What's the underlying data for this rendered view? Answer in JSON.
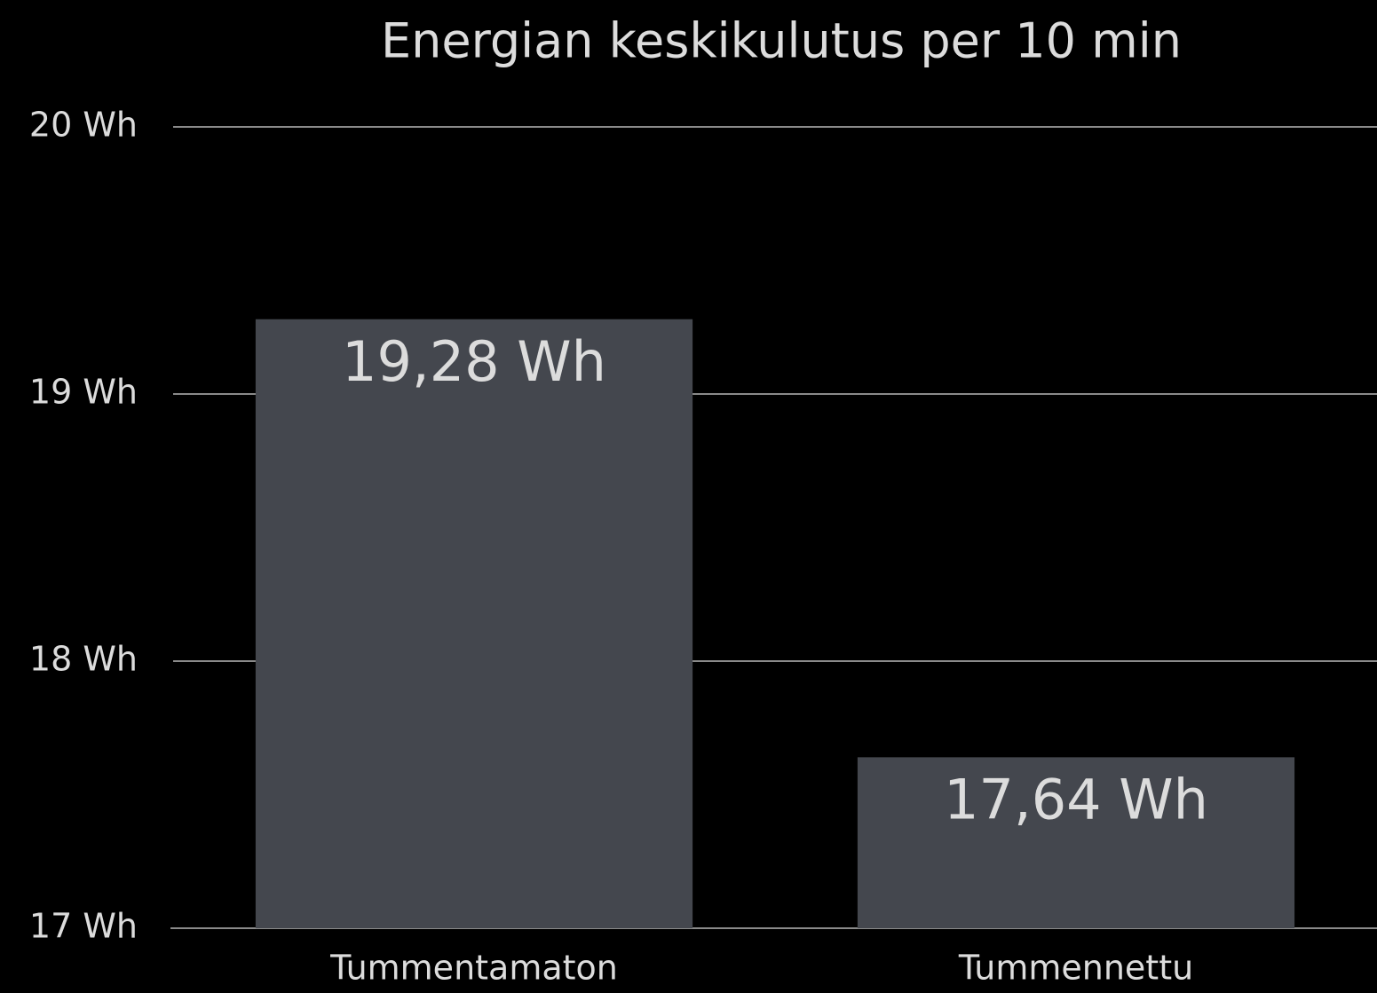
{
  "chart_data": {
    "type": "bar",
    "title": "Energian keskikulutus per 10 min",
    "categories": [
      "Tummentamaton",
      "Tummennettu"
    ],
    "values": [
      19.28,
      17.64
    ],
    "value_labels": [
      "19,28 Wh",
      "17,64 Wh"
    ],
    "color": "#44474e",
    "ylim": [
      17,
      20
    ],
    "yticks": [
      {
        "value": 17,
        "label": "17 Wh"
      },
      {
        "value": 18,
        "label": "18 Wh"
      },
      {
        "value": 19,
        "label": "19 Wh"
      },
      {
        "value": 20,
        "label": "20 Wh"
      }
    ],
    "grid": true
  }
}
